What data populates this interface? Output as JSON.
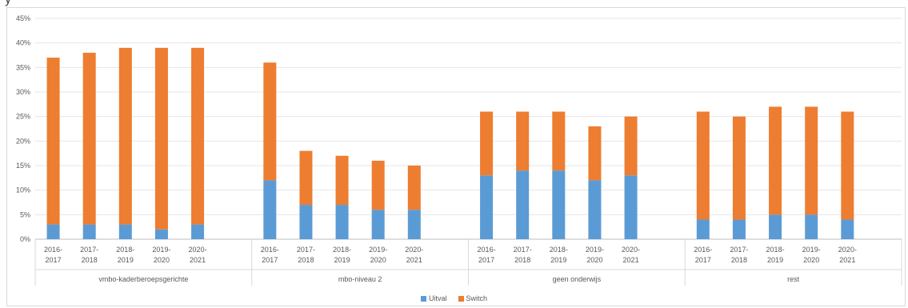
{
  "chart_data": {
    "type": "bar",
    "stacked": true,
    "y_tick_labels": [
      "0%",
      "5%",
      "10%",
      "15%",
      "20%",
      "25%",
      "30%",
      "35%",
      "40%",
      "45%"
    ],
    "ylim": [
      0,
      45
    ],
    "grid": true,
    "legend_position": "bottom",
    "groups": [
      {
        "label": "vmbo-kaderberoepsgerichte",
        "categories": [
          "2016-2017",
          "2017-2018",
          "2018-2019",
          "2019-2020",
          "2020-2021"
        ]
      },
      {
        "label": "mbo-niveau 2",
        "categories": [
          "2016-2017",
          "2017-2018",
          "2018-2019",
          "2019-2020",
          "2020-2021"
        ]
      },
      {
        "label": "geen onderwijs",
        "categories": [
          "2016-2017",
          "2017-2018",
          "2018-2019",
          "2019-2020",
          "2020-2021"
        ]
      },
      {
        "label": "rest",
        "categories": [
          "2016-2017",
          "2017-2018",
          "2018-2019",
          "2019-2020",
          "2020-2021"
        ]
      }
    ],
    "series": [
      {
        "name": "Uitval",
        "color": "#5b9bd5",
        "values": [
          3,
          3,
          3,
          2,
          3,
          12,
          7,
          7,
          6,
          6,
          13,
          14,
          14,
          12,
          13,
          4,
          4,
          5,
          5,
          4
        ]
      },
      {
        "name": "Switch",
        "color": "#ed7d31",
        "values": [
          34,
          35,
          36,
          37,
          36,
          24,
          11,
          10,
          10,
          9,
          13,
          12,
          12,
          11,
          12,
          22,
          21,
          22,
          22,
          22
        ]
      }
    ]
  }
}
